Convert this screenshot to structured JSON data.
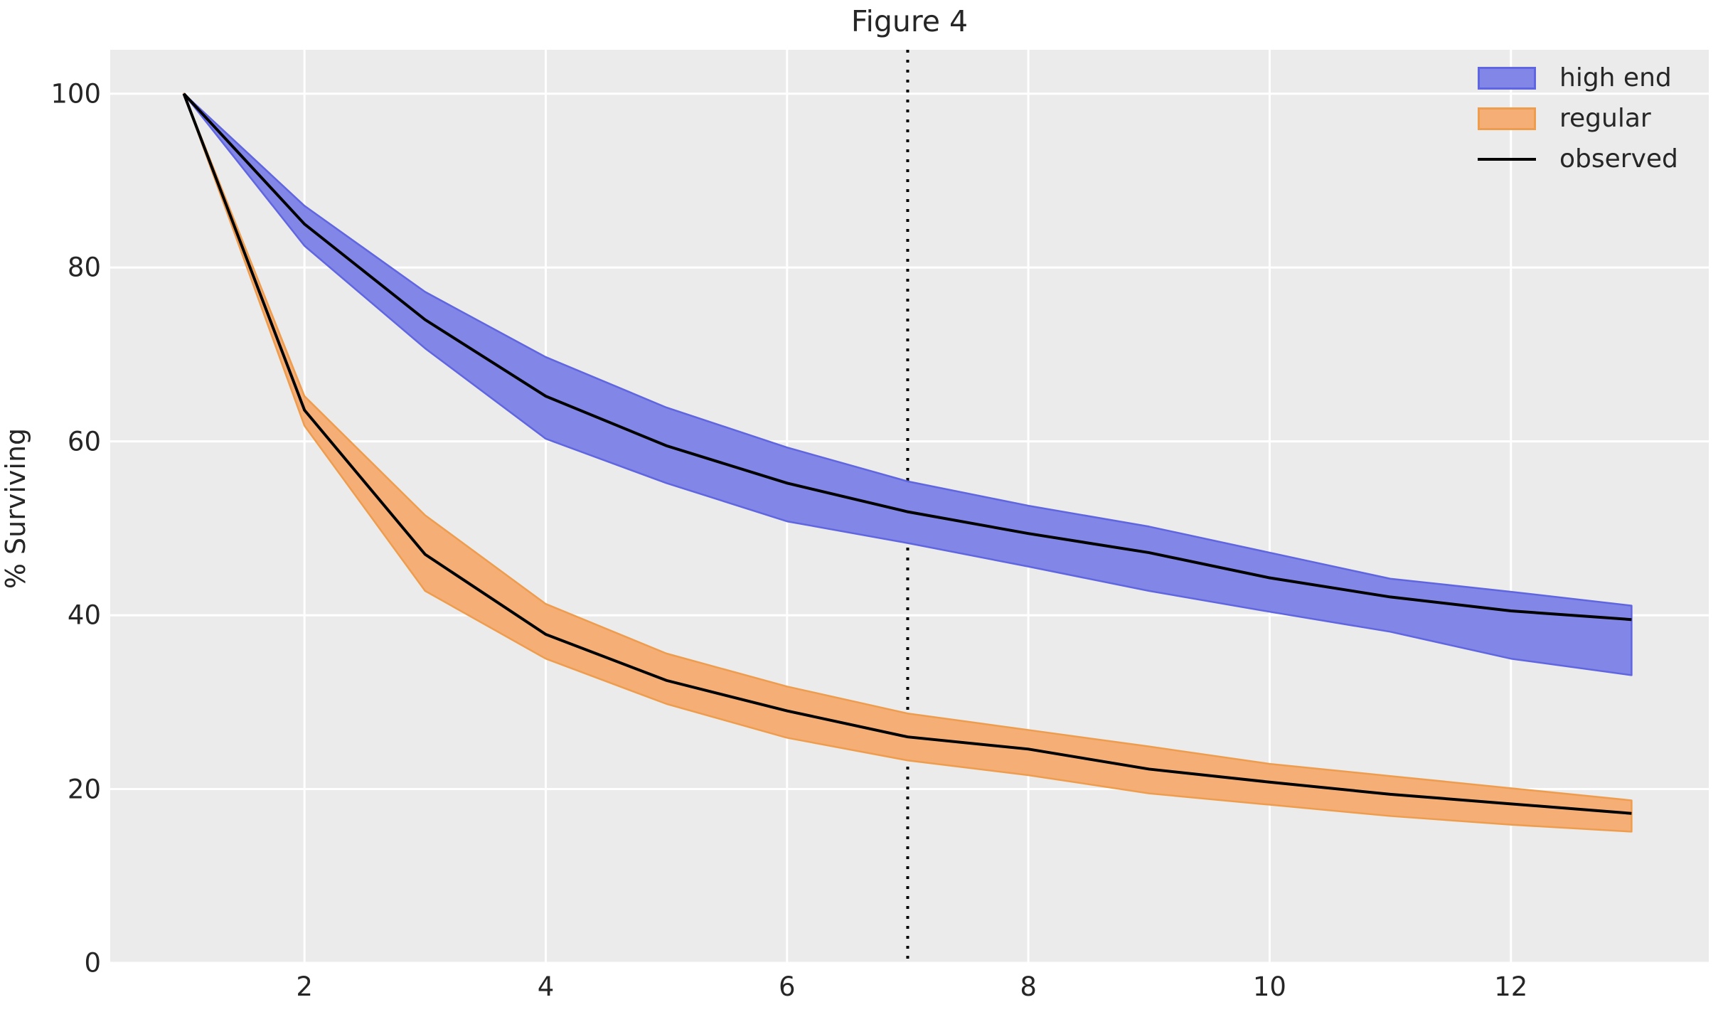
{
  "figure": {
    "title": "Figure 4",
    "ylabel": "% Surviving",
    "background": "#ffffff",
    "axes_background": "#ebebeb",
    "grid_color": "#ffffff",
    "text_color": "#262626"
  },
  "chart_data": {
    "type": "line",
    "title": "Figure 4",
    "xlabel": "",
    "ylabel": "% Surviving",
    "xlim": [
      0.39,
      13.64
    ],
    "ylim": [
      0,
      105.05
    ],
    "x_ticks": [
      "2",
      "4",
      "6",
      "8",
      "10",
      "12"
    ],
    "x_tick_values": [
      2,
      4,
      6,
      8,
      10,
      12
    ],
    "y_ticks": [
      "0",
      "20",
      "40",
      "60",
      "80",
      "100"
    ],
    "y_tick_values": [
      0,
      20,
      40,
      60,
      80,
      100
    ],
    "grid": true,
    "legend_position": "upper right",
    "x": [
      1,
      2,
      3,
      4,
      5,
      6,
      7,
      8,
      9,
      10,
      11,
      12,
      13
    ],
    "series": [
      {
        "name": "high end",
        "kind": "band",
        "fill": "#8186e7",
        "edge": "#6065e0",
        "upper": [
          100,
          87.1,
          77.2,
          69.7,
          63.9,
          59.3,
          55.4,
          52.6,
          50.2,
          47.2,
          44.2,
          42.7,
          41.1
        ],
        "lower": [
          100,
          82.5,
          70.7,
          60.3,
          55.2,
          50.8,
          48.3,
          45.6,
          42.8,
          40.4,
          38.1,
          35.0,
          33.1
        ]
      },
      {
        "name": "regular",
        "kind": "band",
        "fill": "#f4ae76",
        "edge": "#ee9d4e",
        "upper": [
          100,
          65.2,
          51.5,
          41.3,
          35.6,
          31.8,
          28.7,
          26.8,
          24.9,
          22.9,
          21.5,
          20.1,
          18.7
        ],
        "lower": [
          100,
          61.8,
          42.8,
          35.0,
          29.8,
          25.9,
          23.3,
          21.6,
          19.5,
          18.2,
          16.9,
          15.9,
          15.1
        ]
      },
      {
        "name": "observed (high end)",
        "kind": "line",
        "color": "#000000",
        "values": [
          100,
          85,
          74,
          65.2,
          59.5,
          55.2,
          51.9,
          49.4,
          47.2,
          44.3,
          42.1,
          40.5,
          39.5
        ]
      },
      {
        "name": "observed (regular)",
        "kind": "line",
        "color": "#000000",
        "values": [
          100,
          63.6,
          47.0,
          37.8,
          32.5,
          29.0,
          26.0,
          24.6,
          22.3,
          20.8,
          19.4,
          18.3,
          17.2
        ]
      }
    ],
    "annotations": [
      {
        "type": "vline",
        "x": 7,
        "style": "dotted",
        "color": "#000000"
      }
    ],
    "legend": [
      {
        "label": "high end",
        "swatch": "patch",
        "fill": "#8186e7",
        "edge": "#6065e0"
      },
      {
        "label": "regular",
        "swatch": "patch",
        "fill": "#f4ae76",
        "edge": "#ee9d4e"
      },
      {
        "label": "observed",
        "swatch": "line",
        "color": "#000000"
      }
    ]
  }
}
